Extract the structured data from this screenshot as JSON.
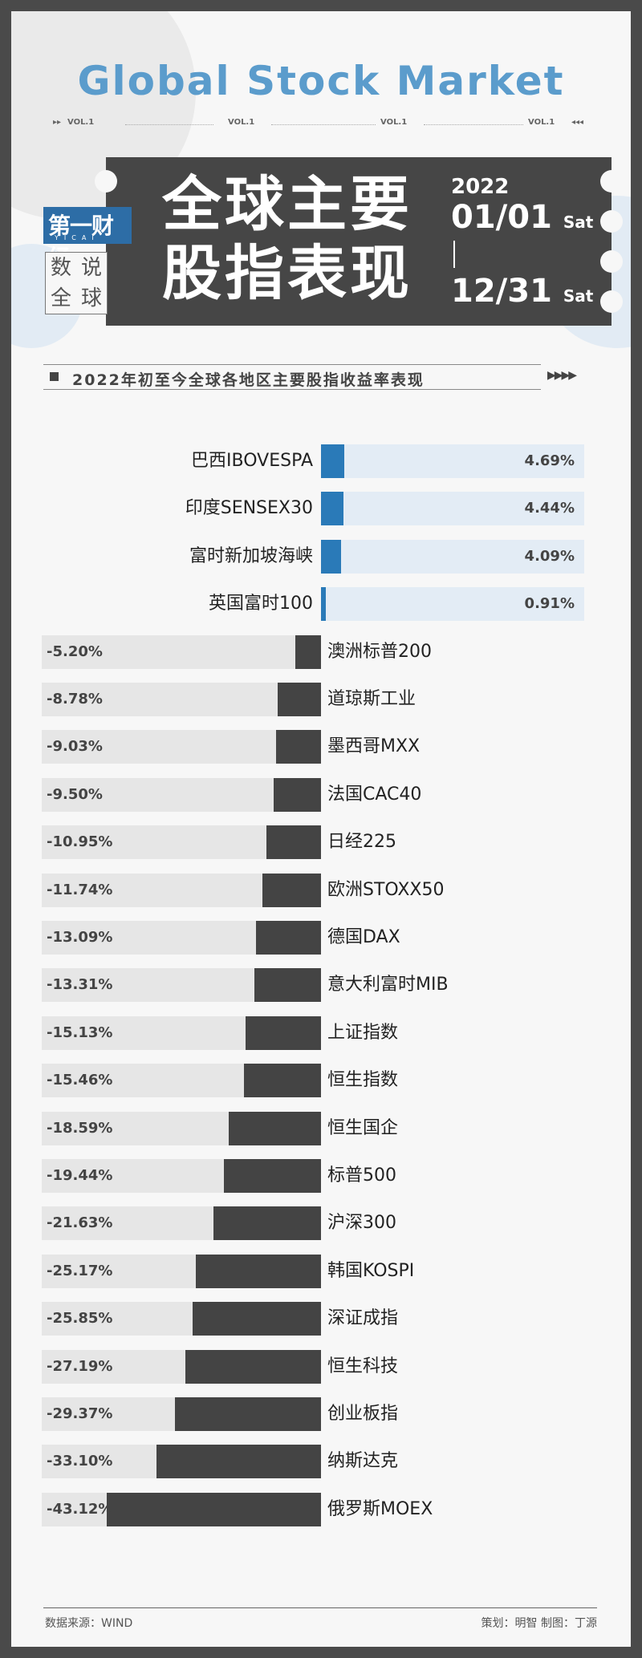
{
  "header": {
    "title": "Global Stock Market",
    "vol_labels": [
      "VOL.1",
      "VOL.1",
      "VOL.1",
      "VOL.1"
    ],
    "logo_main": "第一财经",
    "logo_sub": "YICAI",
    "column_chars": [
      "数",
      "说",
      "全",
      "球"
    ],
    "banner_line1": "全球主要",
    "banner_line2": "股指表现",
    "year": "2022",
    "start_date": "01/01",
    "start_day": "Sat",
    "end_date": "12/31",
    "end_day": "Sat"
  },
  "subtitle": "2022年初至今全球各地区主要股指收益率表现",
  "footer": {
    "source": "数据来源：WIND",
    "credits": "策划：明智  制图：丁源"
  },
  "colors": {
    "positive": "#2a7ab8",
    "positive_bg": "#e3ecf5",
    "negative": "#444444",
    "negative_bg": "#e6e6e6",
    "title": "#5b9ccc"
  },
  "chart_data": {
    "type": "bar",
    "title": "2022年初至今全球各地区主要股指收益率表现",
    "unit": "%",
    "categories": [
      "巴西IBOVESPA",
      "印度SENSEX30",
      "富时新加坡海峡",
      "英国富时100",
      "澳洲标普200",
      "道琼斯工业",
      "墨西哥MXX",
      "法国CAC40",
      "日经225",
      "欧洲STOXX50",
      "德国DAX",
      "意大利富时MIB",
      "上证指数",
      "恒生指数",
      "恒生国企",
      "标普500",
      "沪深300",
      "韩国KOSPI",
      "深证成指",
      "恒生科技",
      "创业板指",
      "纳斯达克",
      "俄罗斯MOEX"
    ],
    "values": [
      4.69,
      4.44,
      4.09,
      0.91,
      -5.2,
      -8.78,
      -9.03,
      -9.5,
      -10.95,
      -11.74,
      -13.09,
      -13.31,
      -15.13,
      -15.46,
      -18.59,
      -19.44,
      -21.63,
      -25.17,
      -25.85,
      -27.19,
      -29.37,
      -33.1,
      -43.12
    ],
    "labels": [
      "4.69%",
      "4.44%",
      "4.09%",
      "0.91%",
      "-5.20%",
      "-8.78%",
      "-9.03%",
      "-9.50%",
      "-10.95%",
      "-11.74%",
      "-13.09%",
      "-13.31%",
      "-15.13%",
      "-15.46%",
      "-18.59%",
      "-19.44%",
      "-21.63%",
      "-25.17%",
      "-25.85%",
      "-27.19%",
      "-29.37%",
      "-33.10%",
      "-43.12%"
    ]
  }
}
